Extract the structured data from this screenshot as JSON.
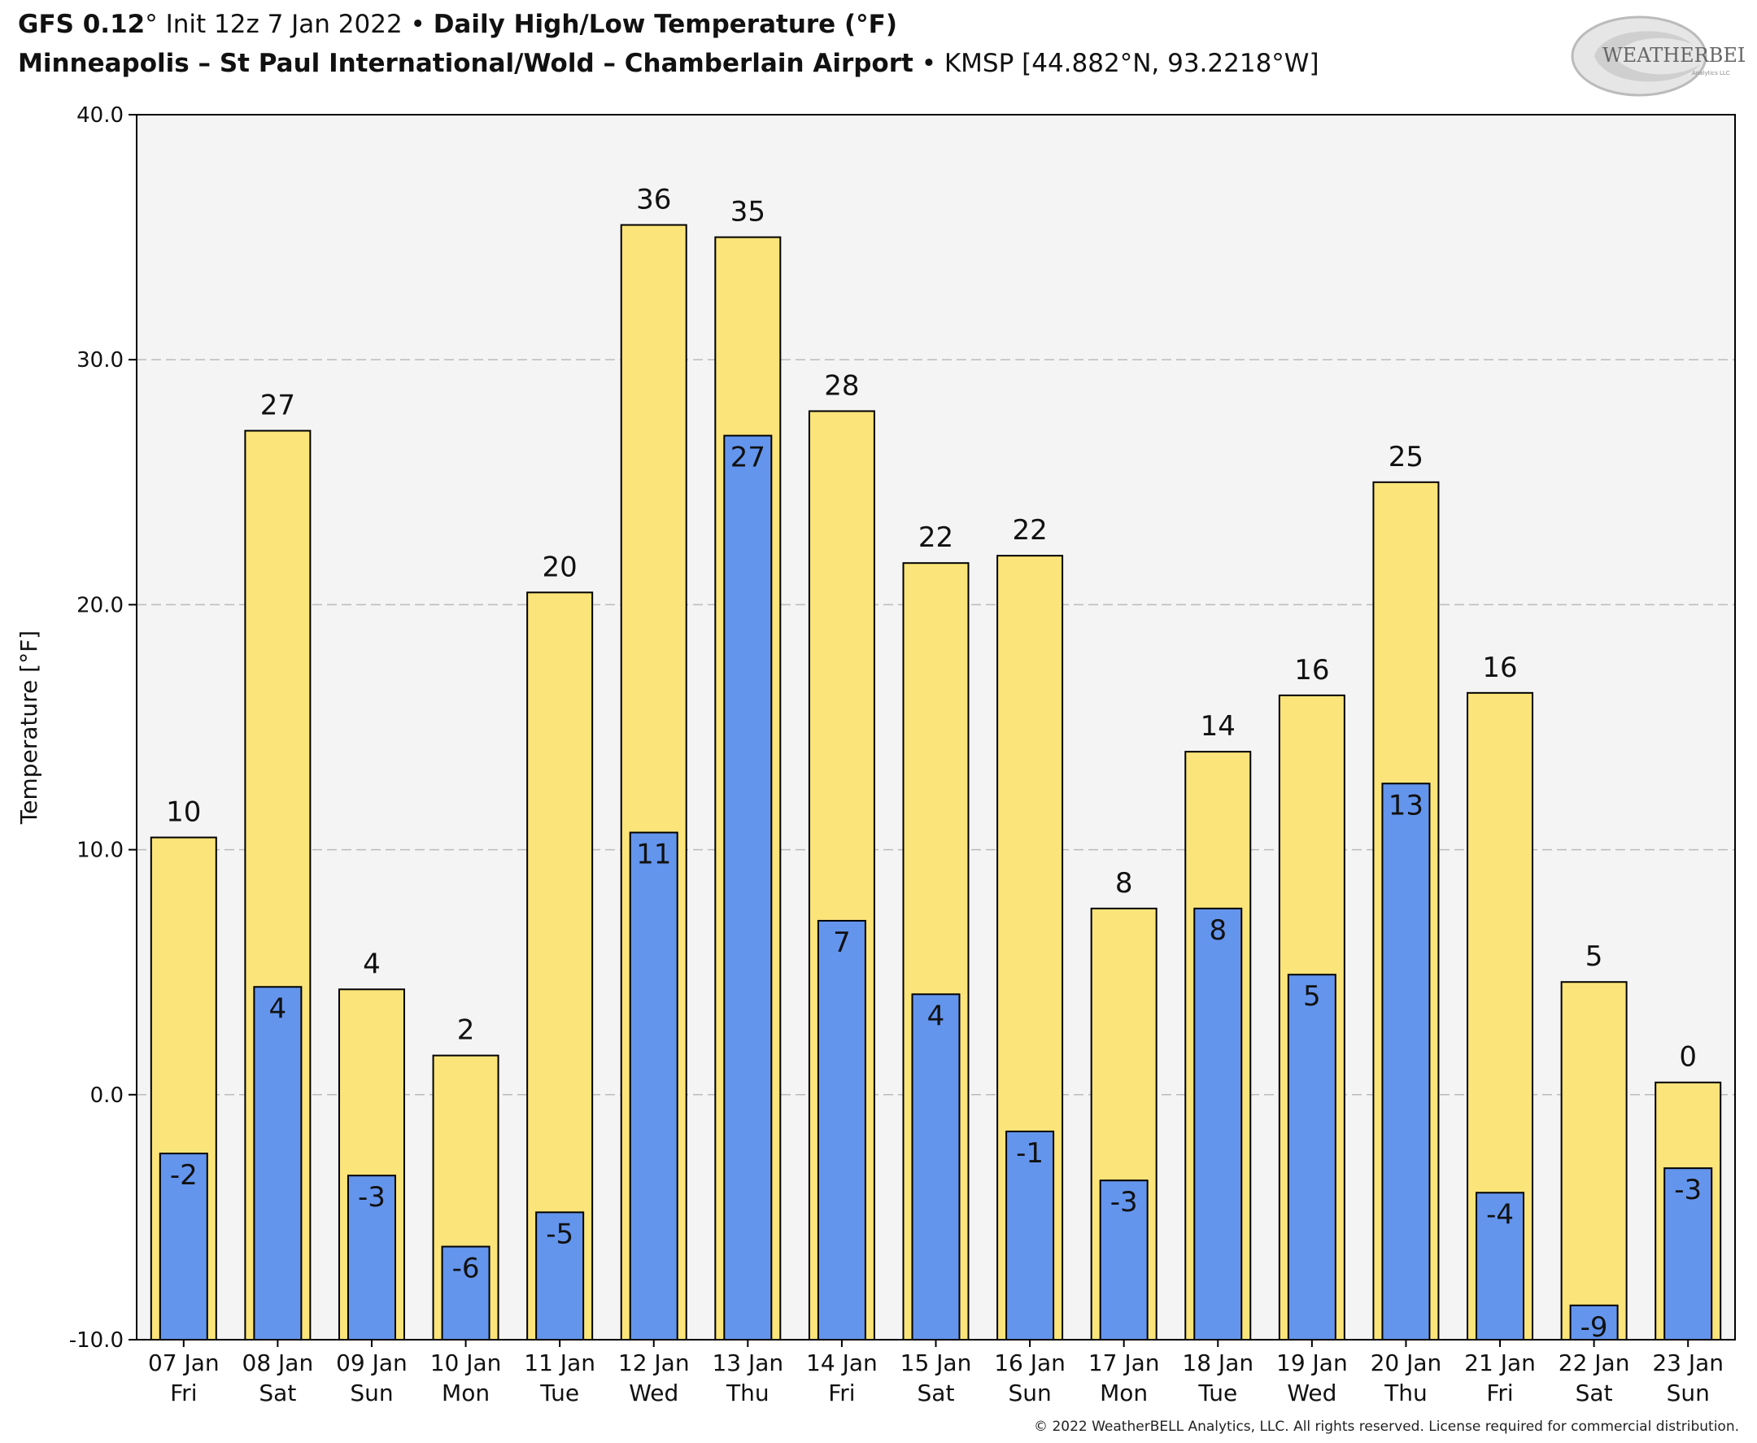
{
  "header": {
    "line1": {
      "model": "GFS 0.12",
      "deg": "°",
      "init": " Init 12z 7 Jan 2022",
      "sep": " • ",
      "product": "Daily High/Low Temperature (°F)"
    },
    "line2": {
      "station": "Minneapolis – St Paul International/Wold – Chamberlain Airport",
      "sep": " • ",
      "code": "KMSP [44.882°N, 93.2218°W]"
    }
  },
  "logo": {
    "text": "WEATHERBELL",
    "subtext": "Analytics LLC"
  },
  "copyright": "© 2022 WeatherBELL Analytics, LLC. All rights reserved. License required for commercial distribution.",
  "colors": {
    "high": "#fbe47a",
    "low": "#6495ed",
    "plot_bg": "#f4f4f4",
    "grid": "#bbbbbb"
  },
  "chart_data": {
    "type": "bar",
    "ylabel": "Temperature [°F]",
    "ylim": [
      -10,
      40
    ],
    "yticks": [
      "-10.0",
      "0.0",
      "10.0",
      "20.0",
      "30.0",
      "40.0"
    ],
    "grid": "horizontal dashed",
    "categories": [
      "07 Jan",
      "08 Jan",
      "09 Jan",
      "10 Jan",
      "11 Jan",
      "12 Jan",
      "13 Jan",
      "14 Jan",
      "15 Jan",
      "16 Jan",
      "17 Jan",
      "18 Jan",
      "19 Jan",
      "20 Jan",
      "21 Jan",
      "22 Jan",
      "23 Jan"
    ],
    "weekdays": [
      "Fri",
      "Sat",
      "Sun",
      "Mon",
      "Tue",
      "Wed",
      "Thu",
      "Fri",
      "Sat",
      "Sun",
      "Mon",
      "Tue",
      "Wed",
      "Thu",
      "Fri",
      "Sat",
      "Sun"
    ],
    "series": [
      {
        "values": [
          10.5,
          27.1,
          4.3,
          1.6,
          20.5,
          35.5,
          35.0,
          27.9,
          21.7,
          22.0,
          7.6,
          14.0,
          16.3,
          25.0,
          16.4,
          4.6,
          0.5
        ],
        "labels": [
          "10",
          "27",
          "4",
          "2",
          "20",
          "36",
          "35",
          "28",
          "22",
          "22",
          "8",
          "14",
          "16",
          "25",
          "16",
          "5",
          "0"
        ]
      },
      {
        "values": [
          -2.4,
          4.4,
          -3.3,
          -6.2,
          -4.8,
          10.7,
          26.9,
          7.1,
          4.1,
          -1.5,
          -3.5,
          7.6,
          4.9,
          12.7,
          -4.0,
          -8.6,
          -3.0
        ],
        "labels": [
          "-2",
          "4",
          "-3",
          "-6",
          "-5",
          "11",
          "27",
          "7",
          "4",
          "-1",
          "-3",
          "8",
          "5",
          "13",
          "-4",
          "-9",
          "-3"
        ]
      }
    ]
  }
}
